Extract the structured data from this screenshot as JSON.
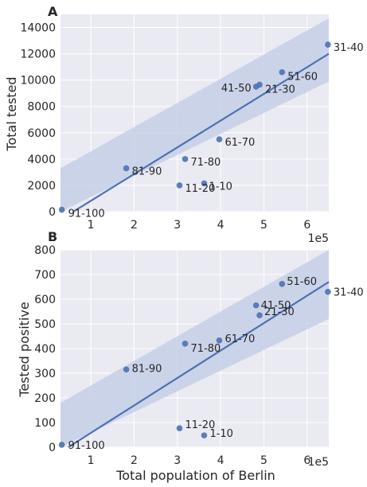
{
  "colors": {
    "plot_background": "#eaeaf2",
    "grid": "#ffffff",
    "point": "#4c72b0",
    "regression_line": "#4c72b0",
    "confidence_band": "#c6cfe8",
    "text": "#262626"
  },
  "chart_data": [
    {
      "type": "scatter",
      "panel_label": "A",
      "ylabel": "Total tested",
      "xlabel": "",
      "x_offset_label": "1e5",
      "xlim": [
        0.3,
        6.5
      ],
      "ylim": [
        0,
        15000
      ],
      "x_ticks": [
        "1",
        "2",
        "3",
        "4",
        "5",
        "6"
      ],
      "y_ticks": [
        "0",
        "2000",
        "4000",
        "6000",
        "8000",
        "10000",
        "12000",
        "14000"
      ],
      "grid": true,
      "regression": {
        "x": [
          0.3,
          6.5
        ],
        "y": [
          -600,
          12000
        ],
        "ci_lower": [
          -4600,
          9900
        ],
        "ci_upper": [
          3300,
          14700
        ]
      },
      "points": [
        {
          "label": "91-100",
          "x": 0.33,
          "y": 150
        },
        {
          "label": "81-90",
          "x": 1.82,
          "y": 3300
        },
        {
          "label": "71-80",
          "x": 3.18,
          "y": 4000
        },
        {
          "label": "11-20",
          "x": 3.05,
          "y": 2000
        },
        {
          "label": "1-10",
          "x": 3.62,
          "y": 2150
        },
        {
          "label": "61-70",
          "x": 3.97,
          "y": 5500
        },
        {
          "label": "41-50",
          "x": 4.82,
          "y": 9500
        },
        {
          "label": "21-30",
          "x": 4.9,
          "y": 9650
        },
        {
          "label": "51-60",
          "x": 5.42,
          "y": 10600
        },
        {
          "label": "31-40",
          "x": 6.48,
          "y": 12700
        }
      ]
    },
    {
      "type": "scatter",
      "panel_label": "B",
      "ylabel": "Tested positive",
      "xlabel": "Total population of Berlin",
      "x_offset_label": "1e5",
      "xlim": [
        0.3,
        6.5
      ],
      "ylim": [
        0,
        800
      ],
      "x_ticks": [
        "1",
        "2",
        "3",
        "4",
        "5",
        "6"
      ],
      "y_ticks": [
        "0",
        "100",
        "200",
        "300",
        "400",
        "500",
        "600",
        "700",
        "800"
      ],
      "grid": true,
      "regression": {
        "x": [
          0.3,
          6.5
        ],
        "y": [
          -20,
          670
        ],
        "ci_lower": [
          -200,
          520
        ],
        "ci_upper": [
          180,
          810
        ]
      },
      "points": [
        {
          "label": "91-100",
          "x": 0.33,
          "y": 10
        },
        {
          "label": "81-90",
          "x": 1.82,
          "y": 315
        },
        {
          "label": "71-80",
          "x": 3.18,
          "y": 420
        },
        {
          "label": "11-20",
          "x": 3.05,
          "y": 77
        },
        {
          "label": "1-10",
          "x": 3.62,
          "y": 48
        },
        {
          "label": "61-70",
          "x": 3.97,
          "y": 433
        },
        {
          "label": "41-50",
          "x": 4.82,
          "y": 575
        },
        {
          "label": "21-30",
          "x": 4.9,
          "y": 535
        },
        {
          "label": "51-60",
          "x": 5.42,
          "y": 662
        },
        {
          "label": "31-40",
          "x": 6.48,
          "y": 630
        }
      ]
    }
  ]
}
